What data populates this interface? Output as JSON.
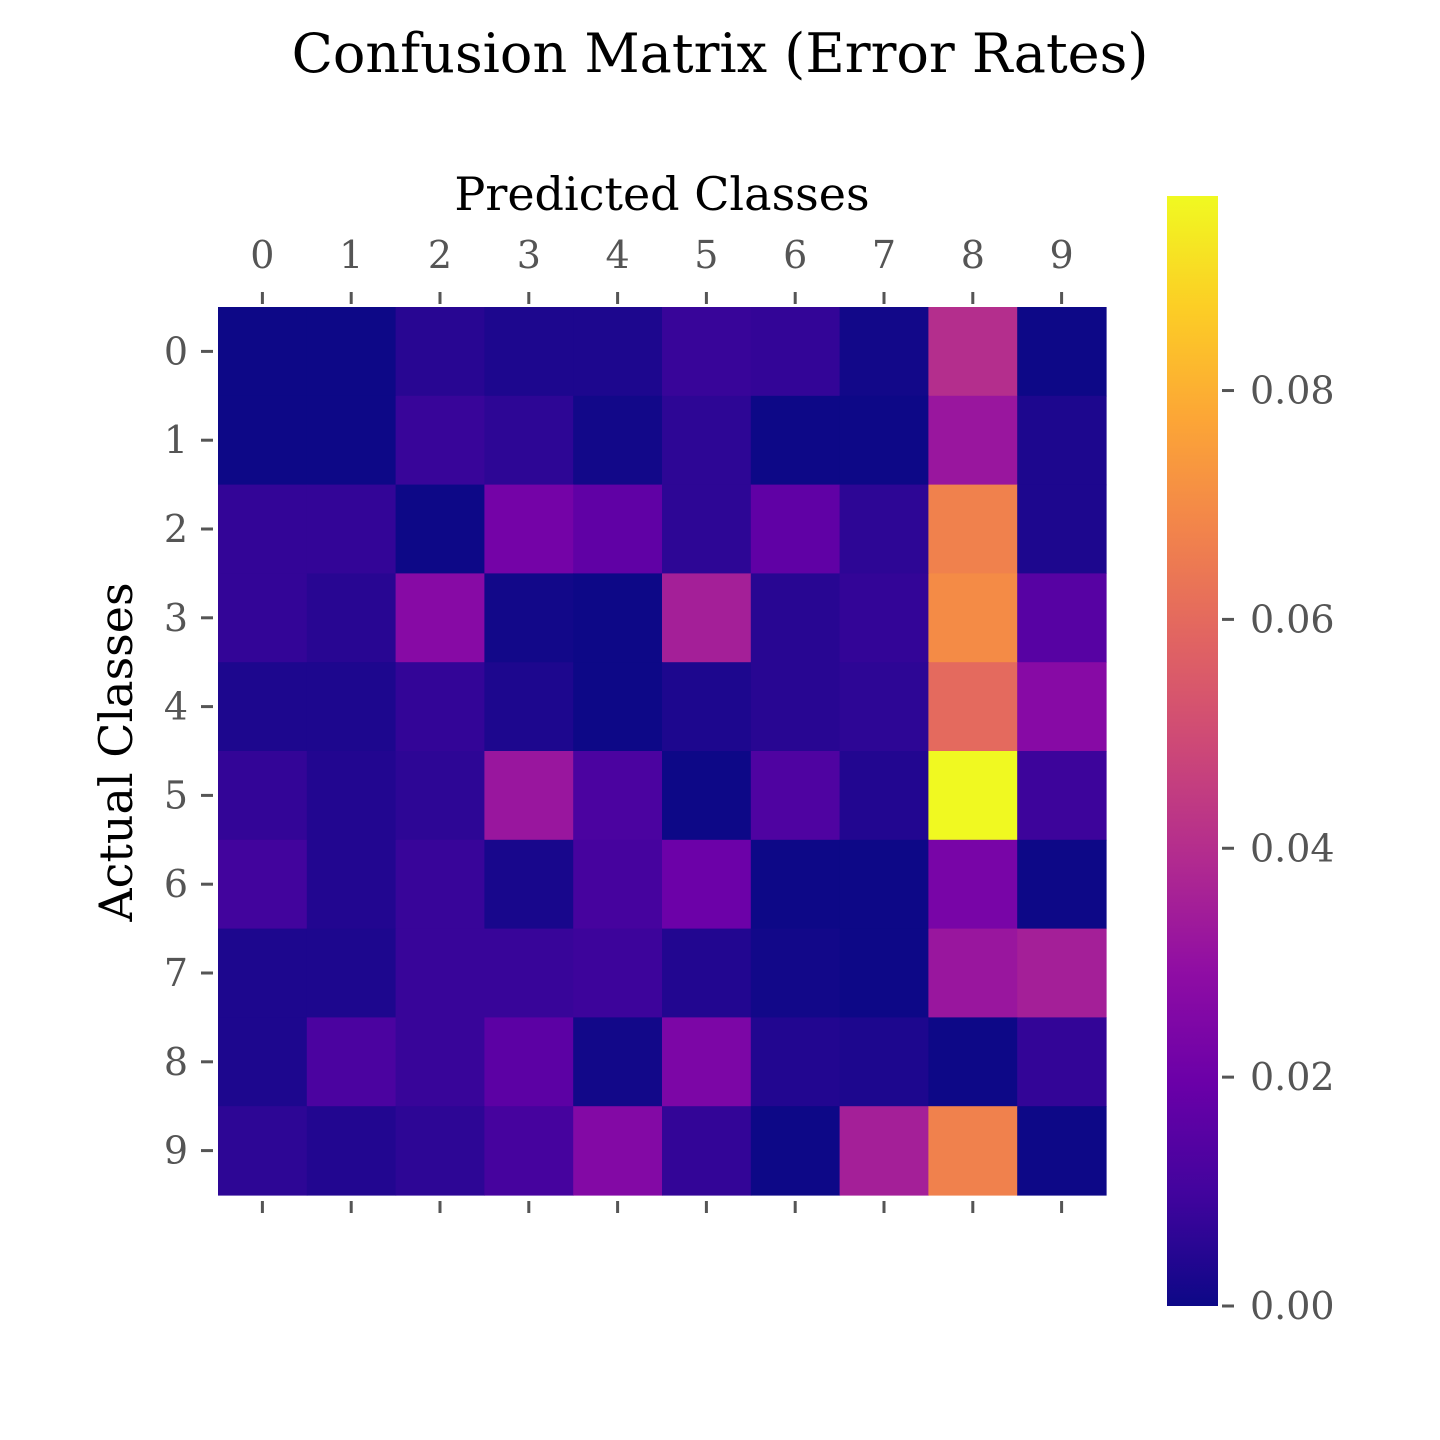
{
  "chart_data": {
    "type": "heatmap",
    "title": "Confusion Matrix (Error Rates)",
    "xlabel": "Predicted Classes",
    "ylabel": "Actual Classes",
    "x_categories": [
      "0",
      "1",
      "2",
      "3",
      "4",
      "5",
      "6",
      "7",
      "8",
      "9"
    ],
    "y_categories": [
      "0",
      "1",
      "2",
      "3",
      "4",
      "5",
      "6",
      "7",
      "8",
      "9"
    ],
    "colormap": "plasma",
    "vmin": 0.0,
    "vmax": 0.097,
    "colorbar_ticks": [
      {
        "value": 0.0,
        "label": "0.00"
      },
      {
        "value": 0.02,
        "label": "0.02"
      },
      {
        "value": 0.04,
        "label": "0.04"
      },
      {
        "value": 0.06,
        "label": "0.06"
      },
      {
        "value": 0.08,
        "label": "0.08"
      }
    ],
    "values": [
      [
        0.0,
        0.0,
        0.005,
        0.003,
        0.003,
        0.008,
        0.007,
        0.001,
        0.04,
        0.0
      ],
      [
        0.0,
        0.0,
        0.008,
        0.006,
        0.001,
        0.006,
        0.0,
        0.0,
        0.032,
        0.003
      ],
      [
        0.007,
        0.007,
        0.0,
        0.022,
        0.017,
        0.006,
        0.017,
        0.006,
        0.067,
        0.003
      ],
      [
        0.007,
        0.005,
        0.027,
        0.001,
        0.0,
        0.035,
        0.005,
        0.007,
        0.07,
        0.015
      ],
      [
        0.003,
        0.003,
        0.007,
        0.003,
        0.0,
        0.003,
        0.005,
        0.006,
        0.06,
        0.027
      ],
      [
        0.007,
        0.004,
        0.006,
        0.032,
        0.012,
        0.0,
        0.013,
        0.004,
        0.097,
        0.009
      ],
      [
        0.01,
        0.004,
        0.008,
        0.002,
        0.011,
        0.02,
        0.0,
        0.0,
        0.023,
        0.0
      ],
      [
        0.003,
        0.003,
        0.008,
        0.008,
        0.009,
        0.004,
        0.001,
        0.0,
        0.032,
        0.035
      ],
      [
        0.003,
        0.012,
        0.008,
        0.016,
        0.001,
        0.024,
        0.004,
        0.003,
        0.0,
        0.007
      ],
      [
        0.006,
        0.004,
        0.006,
        0.011,
        0.026,
        0.007,
        0.0,
        0.035,
        0.067,
        0.0
      ]
    ]
  }
}
